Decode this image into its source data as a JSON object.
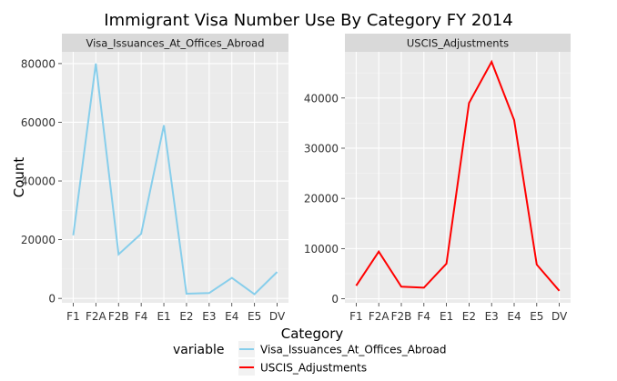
{
  "chart_data": {
    "type": "line",
    "title": "Immigrant Visa Number Use By Category FY 2014",
    "xlabel": "Category",
    "ylabel": "Count",
    "categories": [
      "F1",
      "F2A",
      "F2B",
      "F4",
      "E1",
      "E2",
      "E3",
      "E4",
      "E5",
      "DV"
    ],
    "grid": true,
    "legend_title": "variable",
    "legend_position": "bottom",
    "panels": [
      {
        "strip": "Visa_Issuances_At_Offices_Abroad",
        "ylim": [
          -1500,
          84000
        ],
        "yticks": [
          0,
          20000,
          40000,
          60000,
          80000
        ],
        "series": [
          {
            "name": "Visa_Issuances_At_Offices_Abroad",
            "color": "#87ceeb",
            "values": [
              21500,
              80000,
              15000,
              22000,
              59000,
              1600,
              1800,
              7000,
              1400,
              9000
            ]
          }
        ]
      },
      {
        "strip": "USCIS_Adjustments",
        "ylim": [
          -800,
          49200
        ],
        "yticks": [
          0,
          10000,
          20000,
          30000,
          40000
        ],
        "series": [
          {
            "name": "USCIS_Adjustments",
            "color": "#ff0000",
            "values": [
              2600,
              9400,
              2400,
              2200,
              7000,
              39000,
              47200,
              35600,
              6800,
              1600
            ]
          }
        ]
      }
    ],
    "legend": [
      {
        "label": "Visa_Issuances_At_Offices_Abroad",
        "color": "#87ceeb"
      },
      {
        "label": "USCIS_Adjustments",
        "color": "#ff0000"
      }
    ]
  }
}
